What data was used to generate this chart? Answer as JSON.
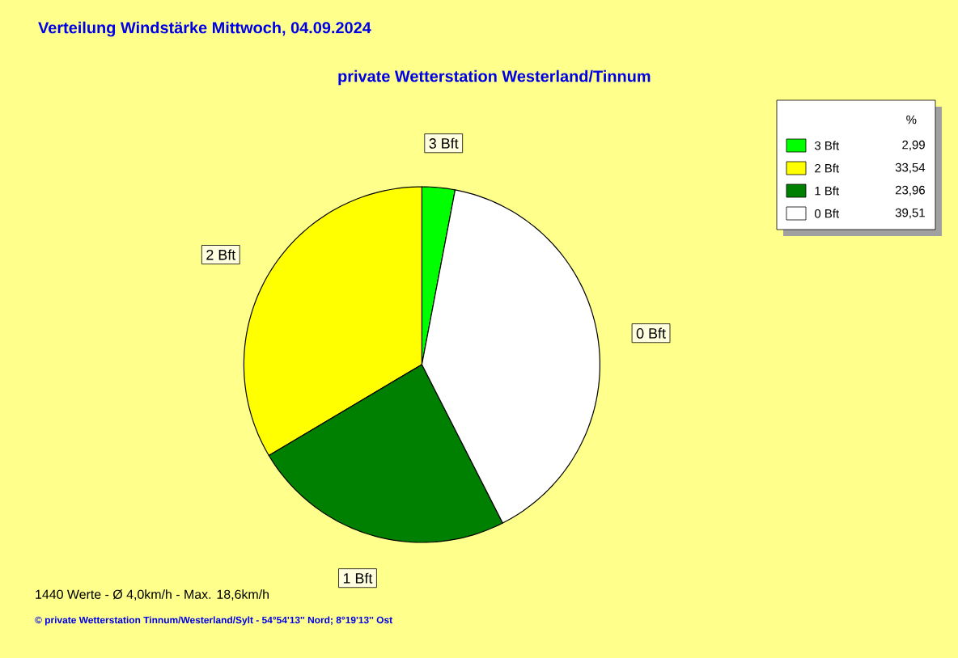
{
  "chart_data": {
    "type": "pie",
    "title": "Verteilung Windstärke  Mittwoch, 04.09.2024",
    "subtitle": "private Wetterstation Westerland/Tinnum",
    "categories": [
      "3 Bft",
      "2 Bft",
      "1 Bft",
      "0 Bft"
    ],
    "values": [
      2.99,
      33.54,
      23.96,
      39.51
    ],
    "value_labels": [
      "2,99",
      "33,54",
      "23,96",
      "39,51"
    ],
    "colors": [
      "#00ff00",
      "#ffff00",
      "#008000",
      "#ffffff"
    ],
    "legend": "top right",
    "legend_title": "%",
    "annotations": [
      "1440 Werte   -   Ø 4,0km/h  -  Max. 18,6km/h",
      "© private Wetterstation Tinnum/Westerland/Sylt   -   54°54'13'' Nord; 8°19'13'' Ost"
    ]
  }
}
